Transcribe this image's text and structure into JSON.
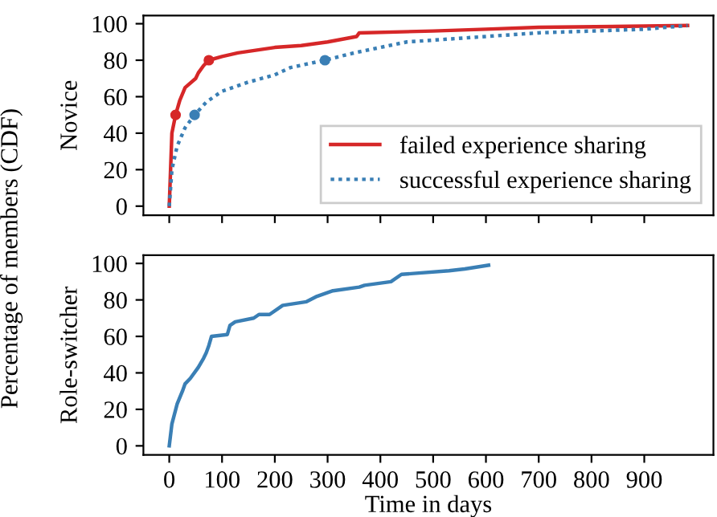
{
  "chart_data": [
    {
      "type": "line",
      "ylabel": "Novice",
      "annotations": [
        "Percentage of members (CDF)"
      ],
      "xlim": [
        -49,
        1031
      ],
      "xticks": [
        0,
        100,
        200,
        300,
        400,
        500,
        600,
        700,
        800,
        900
      ],
      "ylim": [
        -5,
        104.5
      ],
      "yticks": [
        0,
        20,
        40,
        60,
        80,
        100
      ],
      "tick_labels": "y",
      "legend": "lower right",
      "grid": false,
      "series": [
        {
          "name": "failed experience sharing",
          "color": "#d62728",
          "line_style": "solid",
          "x": [
            0,
            5,
            12,
            20,
            30,
            50,
            55,
            65,
            75,
            100,
            130,
            200,
            250,
            300,
            355,
            360,
            500,
            600,
            700,
            982
          ],
          "values": [
            0,
            40,
            50,
            58,
            65,
            70,
            73,
            77,
            80,
            82,
            84,
            87,
            88,
            90,
            93,
            95,
            96,
            97,
            98,
            99
          ]
        },
        {
          "name": "successful experience sharing",
          "color": "#3a7fb5",
          "line_style": "dotted",
          "x": [
            0,
            5,
            15,
            30,
            48,
            70,
            100,
            150,
            200,
            230,
            295,
            350,
            400,
            450,
            500,
            600,
            700,
            800,
            900,
            982
          ],
          "values": [
            0,
            20,
            33,
            43,
            50,
            57,
            63,
            68,
            72,
            76,
            80,
            84,
            87,
            90,
            91,
            93,
            95,
            96,
            97,
            99
          ]
        },
        {
          "type": "scatter",
          "color": "#d62728",
          "marker": "circle",
          "x": [
            12,
            75
          ],
          "values": [
            50,
            80
          ]
        },
        {
          "type": "scatter",
          "color": "#3a7fb5",
          "marker": "circle",
          "x": [
            48,
            295
          ],
          "values": [
            50,
            80
          ]
        }
      ]
    },
    {
      "type": "line",
      "ylabel": "Role-switcher",
      "xlabel": "Time in days",
      "xlim": [
        -49,
        1031
      ],
      "xticks": [
        0,
        100,
        200,
        300,
        400,
        500,
        600,
        700,
        800,
        900
      ],
      "ylim": [
        -5,
        104.5
      ],
      "yticks": [
        0,
        20,
        40,
        60,
        80,
        100
      ],
      "grid": false,
      "series": [
        {
          "color": "#3a7fb5",
          "line_style": "solid",
          "x": [
            0,
            5,
            15,
            25,
            30,
            40,
            55,
            65,
            70,
            75,
            80,
            110,
            115,
            125,
            160,
            170,
            190,
            215,
            260,
            280,
            310,
            360,
            370,
            420,
            440,
            530,
            560,
            605
          ],
          "values": [
            0,
            12,
            23,
            30,
            34,
            37,
            43,
            48,
            51,
            55,
            60,
            61,
            66,
            68,
            70,
            72,
            72,
            77,
            79,
            82,
            85,
            87,
            88,
            90,
            94,
            96,
            97,
            99
          ]
        }
      ]
    }
  ]
}
